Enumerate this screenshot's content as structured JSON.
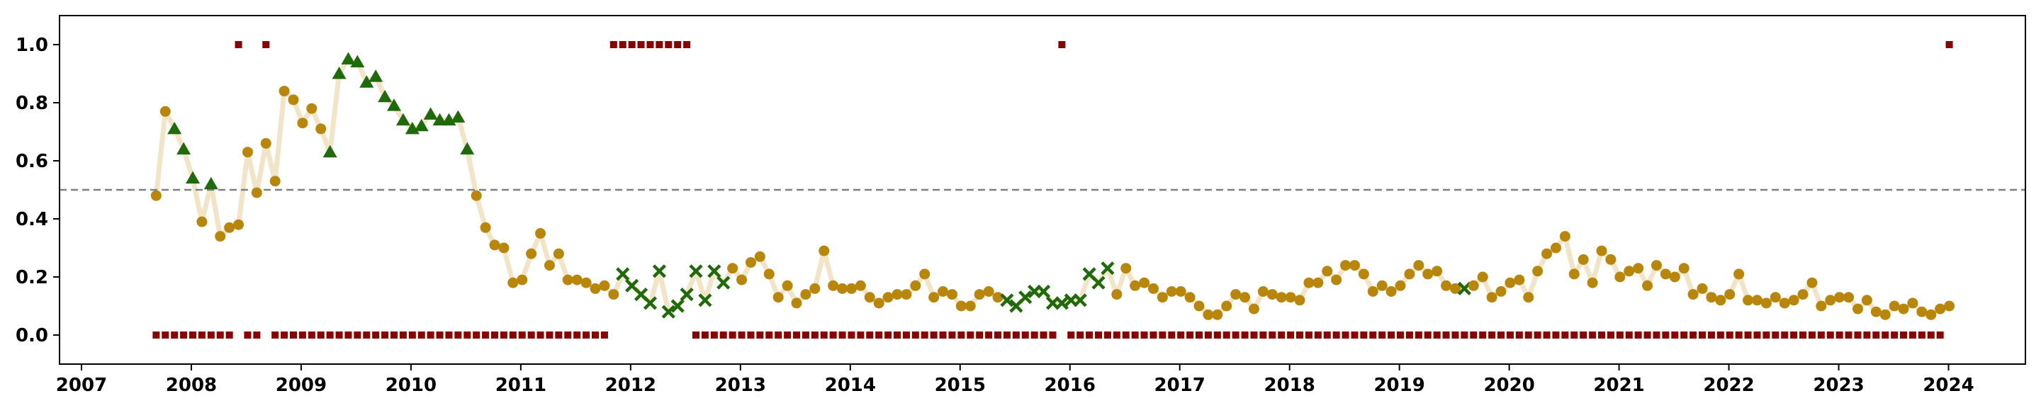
{
  "chart_data": {
    "type": "scatter",
    "title": "",
    "xlabel": "",
    "ylabel": "",
    "xlim": [
      2006.8,
      2024.7
    ],
    "ylim": [
      -0.1,
      1.1
    ],
    "xticks": [
      2007,
      2008,
      2009,
      2010,
      2011,
      2012,
      2013,
      2014,
      2015,
      2016,
      2017,
      2018,
      2019,
      2020,
      2021,
      2022,
      2023,
      2024
    ],
    "yticks": [
      0.0,
      0.2,
      0.4,
      0.6,
      0.8,
      1.0
    ],
    "grid": false,
    "legend": "none",
    "reference_line": {
      "y": 0.5,
      "color": "#808080",
      "style": "dashed"
    },
    "colors": {
      "trend_line": "#f2e4c6",
      "circle": "#b8860b",
      "triangle": "#1f6a0a",
      "cross": "#1f6a0a",
      "square": "#8b0000"
    },
    "x_start": 2007.68,
    "x_step": 0.0833,
    "values": [
      0.48,
      0.77,
      0.71,
      0.64,
      0.54,
      0.39,
      0.52,
      0.34,
      0.37,
      0.38,
      0.63,
      0.49,
      0.66,
      0.53,
      0.84,
      0.81,
      0.73,
      0.78,
      0.71,
      0.63,
      0.9,
      0.95,
      0.94,
      0.87,
      0.89,
      0.82,
      0.79,
      0.74,
      0.71,
      0.72,
      0.76,
      0.74,
      0.74,
      0.75,
      0.64,
      0.48,
      0.37,
      0.31,
      0.3,
      0.18,
      0.19,
      0.28,
      0.35,
      0.24,
      0.28,
      0.19,
      0.19,
      0.18,
      0.16,
      0.17,
      0.14,
      0.21,
      0.17,
      0.14,
      0.11,
      0.22,
      0.08,
      0.1,
      0.14,
      0.22,
      0.12,
      0.22,
      0.18,
      0.23,
      0.19,
      0.25,
      0.27,
      0.21,
      0.13,
      0.17,
      0.11,
      0.14,
      0.16,
      0.29,
      0.17,
      0.16,
      0.16,
      0.17,
      0.13,
      0.11,
      0.13,
      0.14,
      0.14,
      0.17,
      0.21,
      0.13,
      0.15,
      0.14,
      0.1,
      0.1,
      0.14,
      0.15,
      0.13,
      0.12,
      0.1,
      0.13,
      0.15,
      0.15,
      0.11,
      0.11,
      0.12,
      0.12,
      0.21,
      0.18,
      0.23,
      0.14,
      0.23,
      0.17,
      0.18,
      0.16,
      0.13,
      0.15,
      0.15,
      0.13,
      0.1,
      0.07,
      0.07,
      0.1,
      0.14,
      0.13,
      0.09,
      0.15,
      0.14,
      0.13,
      0.13,
      0.12,
      0.18,
      0.18,
      0.22,
      0.19,
      0.24,
      0.24,
      0.21,
      0.15,
      0.17,
      0.15,
      0.17,
      0.21,
      0.24,
      0.21,
      0.22,
      0.17,
      0.16,
      0.16,
      0.17,
      0.2,
      0.13,
      0.15,
      0.18,
      0.19,
      0.13,
      0.22,
      0.28,
      0.3,
      0.34,
      0.21,
      0.26,
      0.18,
      0.29,
      0.26,
      0.2,
      0.22,
      0.23,
      0.17,
      0.24,
      0.21,
      0.2,
      0.23,
      0.14,
      0.16,
      0.13,
      0.12,
      0.14,
      0.21,
      0.12,
      0.12,
      0.11,
      0.13,
      0.11,
      0.12,
      0.14,
      0.18,
      0.1,
      0.12,
      0.13,
      0.13,
      0.09,
      0.12,
      0.08,
      0.07,
      0.1,
      0.09,
      0.11,
      0.08,
      0.07,
      0.09,
      0.1
    ],
    "markers": "oo^^^o^oooooooooooo^^^^^^^^^^^^^^^^ooooooooooooooooxxxxxxxxxxxxooooooooooooooooooooooooooooooxxxxxxxxxxxxooooooooooooooooooooooooooooooooooooooxooooooooooooooooooooooooooooooooooooooooooooooooooooooxxxxxxxxxxxxxooo",
    "square_flags": "000000000100100000000000000000000000000000000000001111111110000000000000000000000000000000000000000100000000000000000000000000000000000000000000000000000000000000000000000000000000000000000000000011110000110000"
  }
}
